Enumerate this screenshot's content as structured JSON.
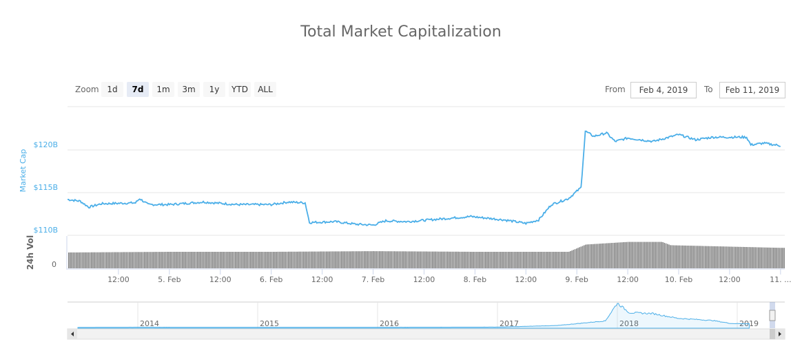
{
  "title": "Total Market Capitalization",
  "range_selector": {
    "label": "Zoom",
    "buttons": [
      "1d",
      "7d",
      "1m",
      "3m",
      "1y",
      "YTD",
      "ALL"
    ],
    "selected": "7d"
  },
  "date_range": {
    "from_label": "From",
    "from": "Feb 4, 2019",
    "to_label": "To",
    "to": "Feb 11, 2019"
  },
  "colors": {
    "line": "#4aaee8",
    "volume": "#7a7a7a",
    "grid": "#e6e6e6"
  },
  "chart_data": {
    "type": "line",
    "title": "Total Market Capitalization",
    "ylabel": "Market Cap",
    "y_ticks": [
      "$110B",
      "$115B",
      "$120B"
    ],
    "ylim": [
      110,
      125
    ],
    "x_unit": "hours since Feb 4 2019 00:00",
    "xlim": [
      0,
      169
    ],
    "x_ticks": [
      {
        "h": 12,
        "label": "12:00"
      },
      {
        "h": 24,
        "label": "5. Feb"
      },
      {
        "h": 36,
        "label": "12:00"
      },
      {
        "h": 48,
        "label": "6. Feb"
      },
      {
        "h": 60,
        "label": "12:00"
      },
      {
        "h": 72,
        "label": "7. Feb"
      },
      {
        "h": 84,
        "label": "12:00"
      },
      {
        "h": 96,
        "label": "8. Feb"
      },
      {
        "h": 108,
        "label": "12:00"
      },
      {
        "h": 120,
        "label": "9. Feb"
      },
      {
        "h": 132,
        "label": "12:00"
      },
      {
        "h": 144,
        "label": "10. Feb"
      },
      {
        "h": 156,
        "label": "12:00"
      },
      {
        "h": 168,
        "label": "11. ..."
      }
    ],
    "series": [
      {
        "name": "Market Cap",
        "unit": "$B",
        "points": [
          [
            0,
            114.2
          ],
          [
            3,
            114.0
          ],
          [
            5,
            113.3
          ],
          [
            8,
            113.7
          ],
          [
            16,
            113.8
          ],
          [
            17,
            114.3
          ],
          [
            19,
            113.6
          ],
          [
            24,
            113.6
          ],
          [
            32,
            113.9
          ],
          [
            40,
            113.6
          ],
          [
            48,
            113.6
          ],
          [
            52,
            113.9
          ],
          [
            56,
            113.8
          ],
          [
            57,
            111.5
          ],
          [
            63,
            111.6
          ],
          [
            68,
            111.3
          ],
          [
            72,
            111.2
          ],
          [
            75,
            111.7
          ],
          [
            80,
            111.6
          ],
          [
            90,
            112.0
          ],
          [
            95,
            112.2
          ],
          [
            103,
            111.8
          ],
          [
            108,
            111.4
          ],
          [
            111,
            111.8
          ],
          [
            114,
            113.6
          ],
          [
            118,
            114.3
          ],
          [
            121,
            115.6
          ],
          [
            122,
            122.2
          ],
          [
            124,
            121.6
          ],
          [
            127,
            122.0
          ],
          [
            129,
            121.0
          ],
          [
            132,
            121.4
          ],
          [
            138,
            121.0
          ],
          [
            144,
            121.8
          ],
          [
            148,
            121.2
          ],
          [
            152,
            121.5
          ],
          [
            160,
            121.5
          ],
          [
            161,
            120.6
          ],
          [
            164,
            120.8
          ],
          [
            168,
            120.5
          ]
        ]
      },
      {
        "name": "24h Vol",
        "y_ticks": [
          "0"
        ],
        "points": [
          [
            0,
            0.48
          ],
          [
            24,
            0.5
          ],
          [
            48,
            0.5
          ],
          [
            72,
            0.52
          ],
          [
            96,
            0.5
          ],
          [
            118,
            0.5
          ],
          [
            122,
            0.72
          ],
          [
            132,
            0.8
          ],
          [
            140,
            0.8
          ],
          [
            142,
            0.7
          ],
          [
            168,
            0.62
          ]
        ]
      }
    ],
    "navigator": {
      "x_ticks": [
        "2014",
        "2015",
        "2016",
        "2017",
        "2018",
        "2019"
      ],
      "points": [
        [
          2013.5,
          1
        ],
        [
          2014,
          8
        ],
        [
          2015,
          4
        ],
        [
          2016,
          6
        ],
        [
          2017,
          12
        ],
        [
          2017.5,
          60
        ],
        [
          2017.9,
          200
        ],
        [
          2018.0,
          740
        ],
        [
          2018.1,
          450
        ],
        [
          2018.3,
          420
        ],
        [
          2018.5,
          280
        ],
        [
          2018.8,
          210
        ],
        [
          2018.95,
          120
        ],
        [
          2019.1,
          115
        ]
      ]
    }
  }
}
